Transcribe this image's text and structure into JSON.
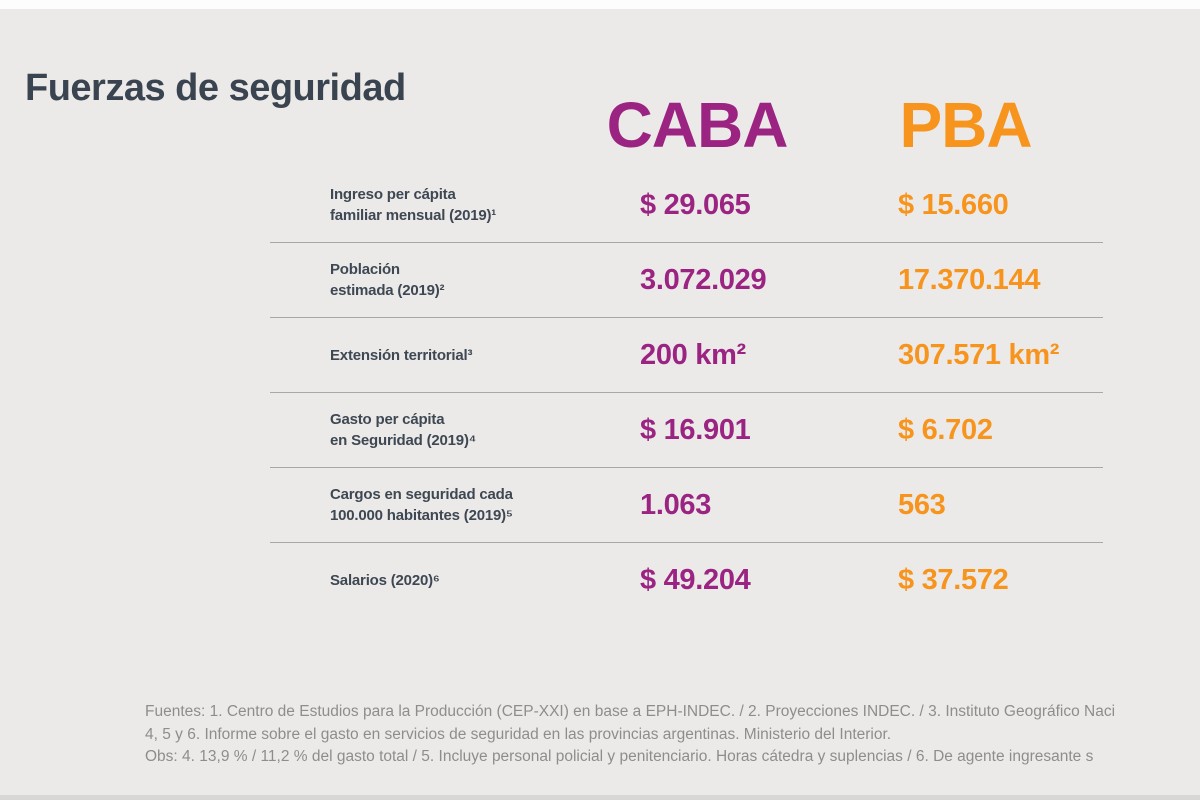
{
  "page": {
    "title": "Fuerzas de seguridad"
  },
  "colors": {
    "bg": "#ECEAE9",
    "caba": "#9B2483",
    "pba": "#F7941D",
    "title": "#3A4450",
    "label": "#3E4853",
    "divider": "#ABA7A5",
    "footer": "#8F8D8C",
    "strip_top": "#FDFDFD",
    "strip_bottom": "#D9D7D6"
  },
  "table": {
    "columns": [
      {
        "id": "caba",
        "label": "CABA"
      },
      {
        "id": "pba",
        "label": "PBA"
      }
    ],
    "rows": [
      {
        "label1": "Ingreso per cápita",
        "label2": "familiar mensual (2019)¹",
        "caba": "$ 29.065",
        "pba": "$ 15.660"
      },
      {
        "label1": "Población",
        "label2": "estimada (2019)²",
        "caba": "3.072.029",
        "pba": "17.370.144"
      },
      {
        "label1": "Extensión territorial³",
        "label2": "",
        "caba": "200 km²",
        "pba": "307.571 km²"
      },
      {
        "label1": "Gasto per cápita",
        "label2": "en Seguridad (2019)⁴",
        "caba": "$ 16.901",
        "pba": "$ 6.702"
      },
      {
        "label1": "Cargos en seguridad cada",
        "label2": "100.000 habitantes (2019)⁵",
        "caba": "1.063",
        "pba": "563"
      },
      {
        "label1": "Salarios (2020)⁶",
        "label2": "",
        "caba": "$ 49.204",
        "pba": "$ 37.572"
      }
    ]
  },
  "footer": {
    "line1": "Fuentes: 1. Centro de Estudios para la Producción (CEP-XXI) en base a EPH-INDEC. / 2. Proyecciones INDEC. / 3. Instituto Geográfico Naci",
    "line2": "4, 5 y 6. Informe sobre el gasto en servicios de seguridad en las provincias argentinas. Ministerio del Interior.",
    "line3": "Obs: 4. 13,9 % / 11,2 % del gasto total / 5. Incluye personal policial y penitenciario. Horas cátedra y suplencias / 6. De agente ingresante s"
  },
  "chart_data": {
    "type": "table",
    "title": "Fuerzas de seguridad",
    "categories": [
      "Ingreso per cápita familiar mensual (2019)",
      "Población estimada (2019)",
      "Extensión territorial",
      "Gasto per cápita en Seguridad (2019)",
      "Cargos en seguridad cada 100.000 habitantes (2019)",
      "Salarios (2020)"
    ],
    "series": [
      {
        "name": "CABA",
        "values": [
          "$ 29.065",
          "3.072.029",
          "200 km²",
          "$ 16.901",
          "1.063",
          "$ 49.204"
        ]
      },
      {
        "name": "PBA",
        "values": [
          "$ 15.660",
          "17.370.144",
          "307.571 km²",
          "$ 6.702",
          "563",
          "$ 37.572"
        ]
      }
    ],
    "legend_position": "top",
    "grid": "horizontal-dividers"
  }
}
